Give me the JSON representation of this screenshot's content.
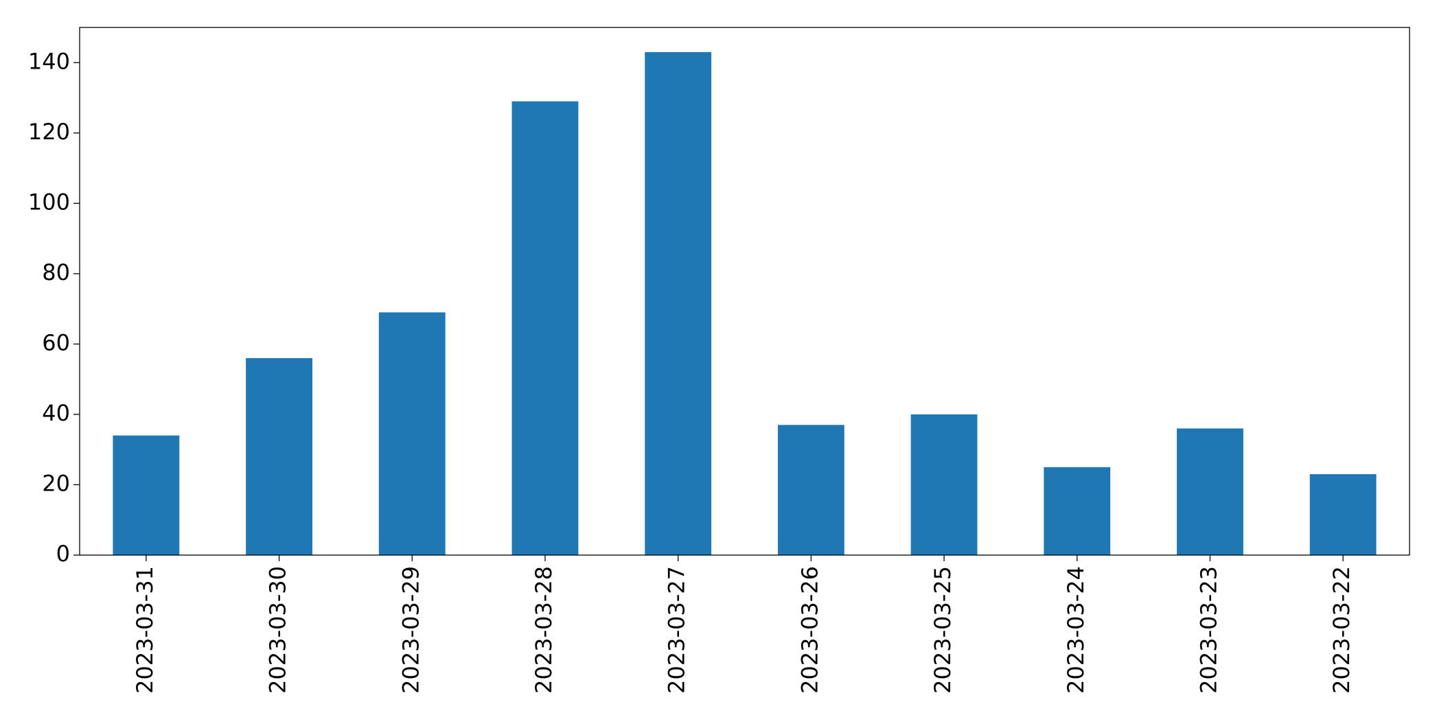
{
  "chart_data": {
    "type": "bar",
    "categories": [
      "2023-03-31",
      "2023-03-30",
      "2023-03-29",
      "2023-03-28",
      "2023-03-27",
      "2023-03-26",
      "2023-03-25",
      "2023-03-24",
      "2023-03-23",
      "2023-03-22"
    ],
    "values": [
      34,
      56,
      69,
      129,
      143,
      37,
      40,
      25,
      36,
      23
    ],
    "color": "#1f77b4",
    "ylim": [
      0,
      150
    ],
    "yticks": [
      0,
      20,
      40,
      60,
      80,
      100,
      120,
      140
    ],
    "grid": false
  }
}
